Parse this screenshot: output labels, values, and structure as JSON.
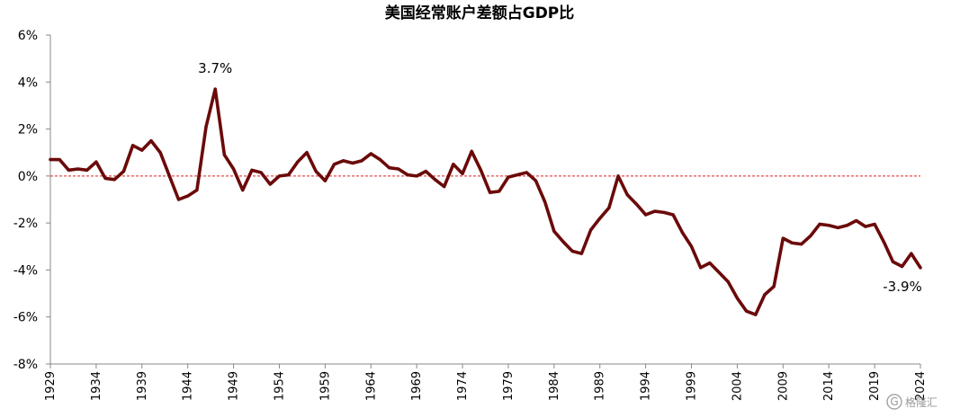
{
  "chart_data": {
    "type": "line",
    "title": "美国经常账户差额占GDP比",
    "xlabel": "",
    "ylabel": "",
    "ylim": [
      -8,
      6
    ],
    "yticks": [
      6,
      4,
      2,
      0,
      -2,
      -4,
      -6,
      -8
    ],
    "ytick_labels": [
      "6%",
      "4%",
      "2%",
      "0%",
      "-2%",
      "-4%",
      "-6%",
      "-8%"
    ],
    "xlim": [
      1929,
      2024
    ],
    "xticks": [
      1929,
      1934,
      1939,
      1944,
      1949,
      1954,
      1959,
      1964,
      1969,
      1974,
      1979,
      1984,
      1989,
      1994,
      1999,
      2004,
      2009,
      2014,
      2019,
      2024
    ],
    "xtick_labels": [
      "1929",
      "1934",
      "1939",
      "1944",
      "1949",
      "1954",
      "1959",
      "1964",
      "1969",
      "1974",
      "1979",
      "1984",
      "1989",
      "1994",
      "1999",
      "2004",
      "2009",
      "2014",
      "2019",
      "2024"
    ],
    "reference_line": {
      "y": 0,
      "style": "dashed",
      "color": "#e02020"
    },
    "line_color": "#6b0a0a",
    "x": [
      1929,
      1930,
      1931,
      1932,
      1933,
      1934,
      1935,
      1936,
      1937,
      1938,
      1939,
      1940,
      1941,
      1942,
      1943,
      1944,
      1945,
      1946,
      1947,
      1948,
      1949,
      1950,
      1951,
      1952,
      1953,
      1954,
      1955,
      1956,
      1957,
      1958,
      1959,
      1960,
      1961,
      1962,
      1963,
      1964,
      1965,
      1966,
      1967,
      1968,
      1969,
      1970,
      1971,
      1972,
      1973,
      1974,
      1975,
      1976,
      1977,
      1978,
      1979,
      1980,
      1981,
      1982,
      1983,
      1984,
      1985,
      1986,
      1987,
      1988,
      1989,
      1990,
      1991,
      1992,
      1993,
      1994,
      1995,
      1996,
      1997,
      1998,
      1999,
      2000,
      2001,
      2002,
      2003,
      2004,
      2005,
      2006,
      2007,
      2008,
      2009,
      2010,
      2011,
      2012,
      2013,
      2014,
      2015,
      2016,
      2017,
      2018,
      2019,
      2020,
      2021,
      2022,
      2023,
      2024
    ],
    "series": [
      {
        "values": [
          0.7,
          0.7,
          0.25,
          0.3,
          0.25,
          0.6,
          -0.1,
          -0.15,
          0.2,
          1.3,
          1.1,
          1.5,
          1.0,
          0.0,
          -1.0,
          -0.85,
          -0.6,
          2.1,
          3.7,
          0.9,
          0.3,
          -0.6,
          0.25,
          0.15,
          -0.35,
          0.0,
          0.05,
          0.6,
          1.0,
          0.2,
          -0.2,
          0.5,
          0.65,
          0.55,
          0.65,
          0.95,
          0.7,
          0.35,
          0.3,
          0.05,
          0.0,
          0.2,
          -0.15,
          -0.45,
          0.5,
          0.1,
          1.05,
          0.25,
          -0.7,
          -0.65,
          -0.05,
          0.05,
          0.15,
          -0.2,
          -1.1,
          -2.35,
          -2.8,
          -3.2,
          -3.3,
          -2.3,
          -1.8,
          -1.35,
          0.0,
          -0.8,
          -1.2,
          -1.65,
          -1.5,
          -1.55,
          -1.65,
          -2.4,
          -3.0,
          -3.9,
          -3.7,
          -4.1,
          -4.5,
          -5.2,
          -5.75,
          -5.9,
          -5.05,
          -4.7,
          -2.65,
          -2.85,
          -2.9,
          -2.55,
          -2.05,
          -2.1,
          -2.2,
          -2.1,
          -1.9,
          -2.15,
          -2.05,
          -2.8,
          -3.65,
          -3.85,
          -3.3,
          -3.9
        ]
      }
    ],
    "annotations": [
      {
        "x": 1947,
        "y": 3.7,
        "text": "3.7%"
      },
      {
        "x": 2024,
        "y": -3.9,
        "text": "-3.9%"
      }
    ],
    "legend": "none",
    "grid": false
  },
  "watermark": "格隆汇"
}
